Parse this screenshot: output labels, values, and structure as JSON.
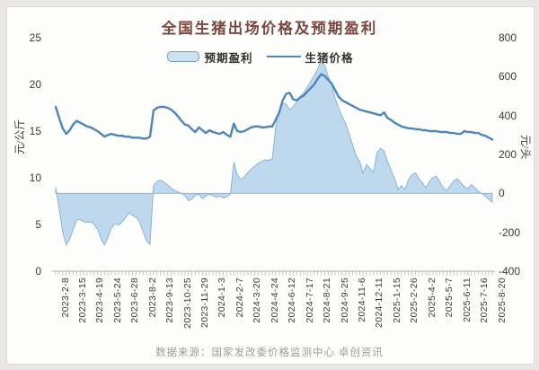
{
  "title": "全国生猪出场价格及预期盈利",
  "footer": "数据来源：国家发改委价格监测中心 卓创资讯",
  "colors": {
    "area_fill": "#bed8ee",
    "area_stroke": "#85aed4",
    "line": "#4e86ba",
    "title_text": "#7b463e",
    "axis_text": "#3a3a3a",
    "footer_text": "#a09c97",
    "axis_line": "#b3b0ab"
  },
  "chart_data": {
    "type": "combo",
    "title": "全国生猪出场价格及预期盈利",
    "grid": false,
    "legend_position": "top",
    "x_label_interval": 5,
    "x_tick_labels": [
      "2023-2-8",
      "2023-3-15",
      "2023-4-19",
      "2023-5-24",
      "2023-6-28",
      "2023-8-2",
      "2023-9-13",
      "2023-10-25",
      "2023-11-29",
      "2024-1-3",
      "2024-2-7",
      "2024-3-20",
      "2024-4-24",
      "2024-6-12",
      "2024-7-17",
      "2024-8-21",
      "2024-9-25",
      "2024-11-6",
      "2024-12-11",
      "2025-1-15",
      "2025-2-26",
      "2025-4-2",
      "2025-5-7",
      "2025-6-11",
      "2025-7-16",
      "2025-8-20"
    ],
    "left_axis": {
      "label": "元/公斤",
      "range": [
        0,
        25
      ],
      "ticks": [
        25,
        20,
        15,
        10,
        5,
        0
      ]
    },
    "right_axis": {
      "label": "元/头",
      "range": [
        -400,
        800
      ],
      "ticks": [
        800,
        600,
        400,
        200,
        0,
        -200,
        -400
      ]
    },
    "series": [
      {
        "name": "预期盈利",
        "type": "area",
        "axis": "right",
        "unit": "元/头",
        "values": [
          30,
          -80,
          -200,
          -265,
          -235,
          -185,
          -140,
          -133,
          -145,
          -150,
          -145,
          -160,
          -185,
          -235,
          -265,
          -225,
          -175,
          -155,
          -162,
          -148,
          -125,
          -100,
          -112,
          -122,
          -145,
          -195,
          -245,
          -262,
          40,
          62,
          69,
          57,
          45,
          28,
          15,
          7,
          0,
          -10,
          -38,
          -30,
          -8,
          -5,
          -28,
          -12,
          -6,
          -12,
          -20,
          -14,
          -24,
          -18,
          -4,
          160,
          95,
          72,
          85,
          107,
          125,
          140,
          155,
          165,
          172,
          170,
          178,
          340,
          430,
          465,
          460,
          430,
          445,
          470,
          500,
          515,
          545,
          575,
          605,
          640,
          680,
          660,
          600,
          560,
          490,
          440,
          395,
          360,
          305,
          250,
          195,
          165,
          105,
          148,
          128,
          110,
          210,
          232,
          218,
          165,
          120,
          80,
          20,
          40,
          20,
          70,
          95,
          105,
          75,
          55,
          28,
          60,
          82,
          88,
          60,
          25,
          15,
          40,
          65,
          75,
          55,
          35,
          25,
          45,
          30,
          10,
          0,
          -15,
          -30,
          -46
        ]
      },
      {
        "name": "生猪价格",
        "type": "line",
        "axis": "left",
        "unit": "元/公斤",
        "values": [
          17.6,
          16.4,
          15.3,
          14.7,
          15.1,
          15.7,
          16.1,
          15.9,
          15.7,
          15.5,
          15.4,
          15.2,
          15.0,
          14.7,
          14.4,
          14.6,
          14.7,
          14.6,
          14.5,
          14.5,
          14.4,
          14.4,
          14.3,
          14.3,
          14.3,
          14.2,
          14.2,
          14.4,
          17.2,
          17.5,
          17.6,
          17.6,
          17.5,
          17.3,
          17.0,
          16.6,
          16.1,
          15.7,
          15.6,
          15.2,
          14.9,
          15.4,
          15.1,
          14.8,
          15.1,
          14.9,
          14.8,
          14.7,
          14.9,
          14.6,
          14.4,
          15.8,
          15.0,
          14.9,
          15.0,
          15.2,
          15.4,
          15.5,
          15.5,
          15.4,
          15.4,
          15.5,
          15.5,
          16.2,
          17.0,
          18.3,
          19.0,
          19.1,
          18.4,
          18.3,
          18.6,
          18.8,
          19.2,
          19.6,
          20.0,
          20.6,
          21.1,
          20.9,
          20.5,
          20.1,
          19.4,
          18.7,
          18.3,
          18.1,
          17.9,
          17.7,
          17.5,
          17.3,
          17.2,
          17.1,
          17.0,
          16.9,
          16.8,
          16.7,
          17.0,
          16.4,
          16.2,
          15.9,
          15.7,
          15.5,
          15.4,
          15.3,
          15.3,
          15.2,
          15.2,
          15.1,
          15.1,
          15.0,
          15.0,
          15.0,
          14.9,
          14.9,
          14.9,
          14.8,
          14.8,
          14.7,
          14.7,
          15.0,
          14.9,
          14.9,
          14.8,
          14.8,
          14.6,
          14.5,
          14.3,
          14.1
        ]
      }
    ]
  }
}
